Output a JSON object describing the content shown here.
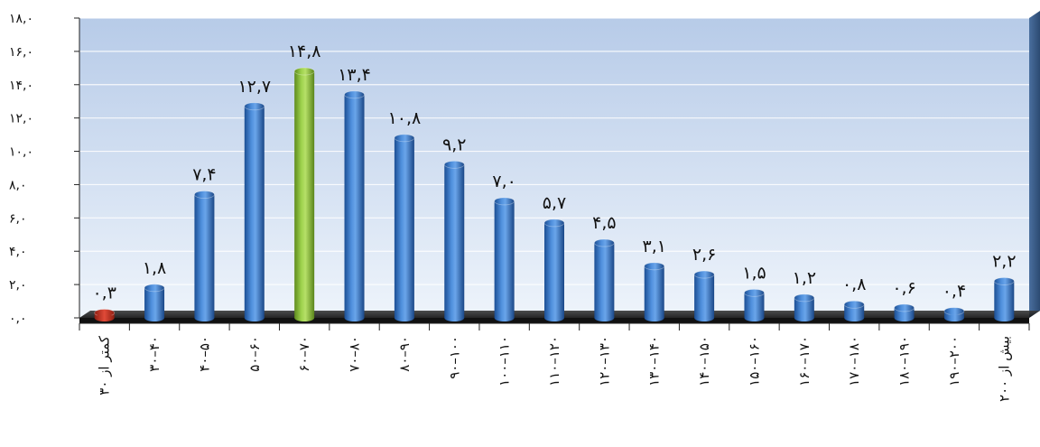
{
  "chart_data": {
    "type": "bar",
    "categories": [
      "کمتر از ۳۰",
      "۳۰–۴۰",
      "۴۰–۵۰",
      "۵۰–۶۰",
      "۶۰–۷۰",
      "۷۰–۸۰",
      "۸۰–۹۰",
      "۹۰–۱۰۰",
      "۱۰۰–۱۱۰",
      "۱۱۰–۱۲۰",
      "۱۲۰–۱۳۰",
      "۱۳۰–۱۴۰",
      "۱۴۰–۱۵۰",
      "۱۵۰–۱۶۰",
      "۱۶۰–۱۷۰",
      "۱۷۰–۱۸۰",
      "۱۸۰–۱۹۰",
      "۱۹۰–۲۰۰",
      "بیش از ۲۰۰"
    ],
    "values": [
      0.3,
      1.8,
      7.4,
      12.7,
      14.8,
      13.4,
      10.8,
      9.2,
      7.0,
      5.7,
      4.5,
      3.1,
      2.6,
      1.5,
      1.2,
      0.8,
      0.6,
      0.4,
      2.2
    ],
    "value_labels": [
      "۰,۳",
      "۱,۸",
      "۷,۴",
      "۱۲,۷",
      "۱۴,۸",
      "۱۳,۴",
      "۱۰,۸",
      "۹,۲",
      "۷,۰",
      "۵,۷",
      "۴,۵",
      "۳,۱",
      "۲,۶",
      "۱,۵",
      "۱,۲",
      "۰,۸",
      "۰,۶",
      "۰,۴",
      "۲,۲"
    ],
    "bar_colors": [
      "#c0392b",
      "#3d7cc9",
      "#3d7cc9",
      "#3d7cc9",
      "#8dc63f",
      "#3d7cc9",
      "#3d7cc9",
      "#3d7cc9",
      "#3d7cc9",
      "#3d7cc9",
      "#3d7cc9",
      "#3d7cc9",
      "#3d7cc9",
      "#3d7cc9",
      "#3d7cc9",
      "#3d7cc9",
      "#3d7cc9",
      "#3d7cc9",
      "#3d7cc9"
    ],
    "ylim": [
      0,
      18
    ],
    "y_ticks": [
      0,
      2,
      4,
      6,
      8,
      10,
      12,
      14,
      16,
      18
    ],
    "y_tick_labels": [
      "۰,۰",
      "۲,۰",
      "۴,۰",
      "۶,۰",
      "۸,۰",
      "۱۰,۰",
      "۱۲,۰",
      "۱۴,۰",
      "۱۶,۰",
      "۱۸,۰"
    ],
    "grid": true,
    "title": "",
    "xlabel": "",
    "ylabel": ""
  }
}
